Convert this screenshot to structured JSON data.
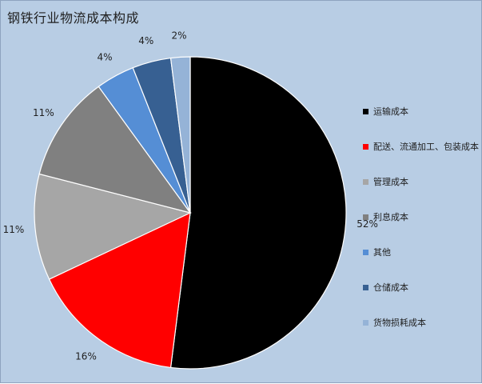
{
  "chart_data": {
    "type": "pie",
    "title": "钢铁行业物流成本构成",
    "categories": [
      "运输成本",
      "配送、流通加工、包装成本",
      "管理成本",
      "利息成本",
      "其他",
      "仓储成本",
      "货物损耗成本"
    ],
    "values": [
      52,
      16,
      11,
      11,
      4,
      4,
      2
    ],
    "labels": [
      "52%",
      "16%",
      "11%",
      "11%",
      "4%",
      "4%",
      "2%"
    ],
    "colors": [
      "#000000",
      "#ff0000",
      "#a6a6a6",
      "#808080",
      "#558ed5",
      "#376092",
      "#95b3d7"
    ],
    "legend_position": "right"
  }
}
